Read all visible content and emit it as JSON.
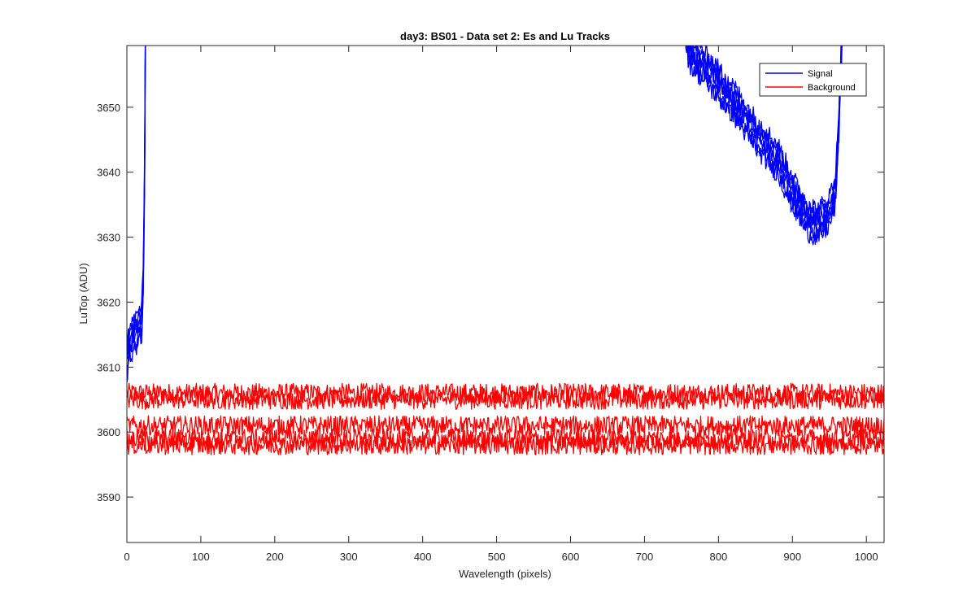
{
  "chart_data": {
    "type": "line",
    "title": "day3: BS01 - Data set 2: Es and Lu Tracks",
    "xlabel": "Wavelength (pixels)",
    "ylabel": "LuTop (ADU)",
    "xlim": [
      0,
      1024
    ],
    "ylim": [
      3583,
      3659.5
    ],
    "xticks": [
      0,
      100,
      200,
      300,
      400,
      500,
      600,
      700,
      800,
      900,
      1000
    ],
    "yticks": [
      3590,
      3600,
      3610,
      3620,
      3630,
      3640,
      3650
    ],
    "grid": false,
    "legend_location": "top-right",
    "series": [
      {
        "name": "Signal",
        "color": "#0000ff",
        "tracks": 6,
        "noise_amplitude": 1.5,
        "segments": [
          {
            "x": [
              0,
              4,
              10,
              15,
              20,
              22,
              24,
              25,
              26
            ],
            "y": [
              3611,
              3614,
              3615,
              3616,
              3617,
              3622,
              3640,
              3660,
              3675
            ]
          },
          {
            "x": [
              740,
              760,
              790,
              820,
              850,
              880,
              900,
              920,
              935,
              950,
              958,
              962,
              966,
              970
            ],
            "y": [
              3675,
              3659,
              3655,
              3651,
              3646,
              3642,
              3637,
              3633,
              3632,
              3634,
              3637,
              3645,
              3658,
              3675
            ]
          }
        ]
      },
      {
        "name": "Background",
        "color": "#ff0000",
        "x_range": [
          0,
          1024
        ],
        "track_levels": [
          3606,
          3605,
          3601,
          3599,
          3598
        ],
        "noise_amplitude": 1.5
      }
    ]
  }
}
